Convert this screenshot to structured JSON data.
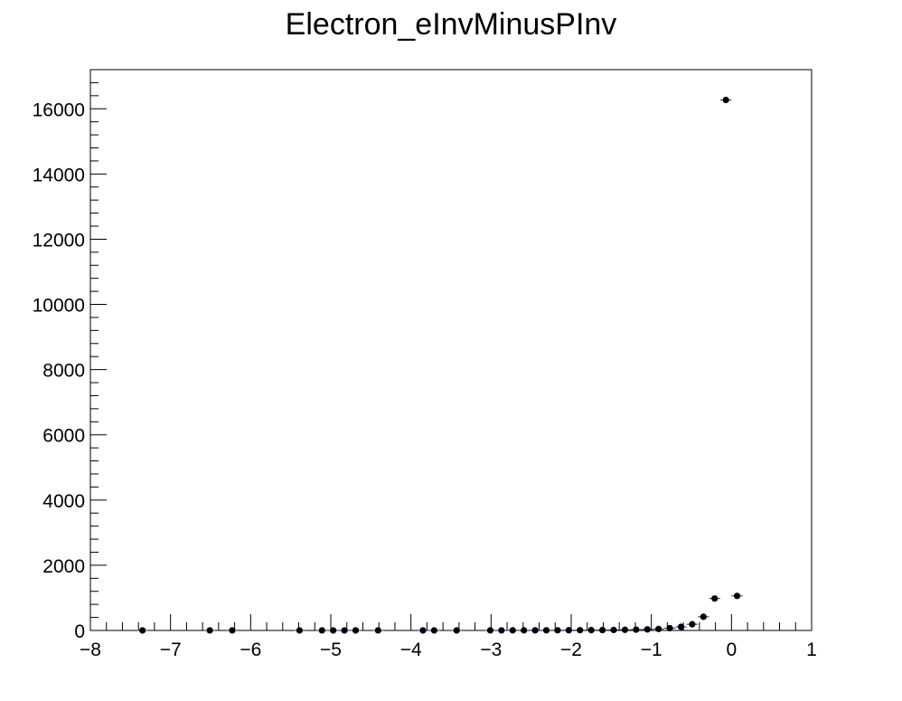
{
  "chart_data": {
    "type": "scatter",
    "title": "Electron_eInvMinusPInv",
    "xlabel": "",
    "ylabel": "",
    "xlim": [
      -8,
      1
    ],
    "ylim": [
      0,
      17200
    ],
    "x_ticks": [
      -8,
      -7,
      -6,
      -5,
      -4,
      -3,
      -2,
      -1,
      0,
      1
    ],
    "x_tick_labels": [
      "−8",
      "−7",
      "−6",
      "−5",
      "−4",
      "−3",
      "−2",
      "−1",
      "0",
      "1"
    ],
    "y_ticks": [
      0,
      2000,
      4000,
      6000,
      8000,
      10000,
      12000,
      14000,
      16000
    ],
    "y_tick_labels": [
      "0",
      "2000",
      "4000",
      "6000",
      "8000",
      "10000",
      "12000",
      "14000",
      "16000"
    ],
    "grid": false,
    "legend": "none",
    "marker_color": "#000000",
    "error_bar_color": "#1f2f8f",
    "bin_width": 0.14,
    "points": [
      {
        "x": -7.35,
        "y": 1
      },
      {
        "x": -6.51,
        "y": 1
      },
      {
        "x": -6.23,
        "y": 1
      },
      {
        "x": -5.39,
        "y": 1
      },
      {
        "x": -5.11,
        "y": 1
      },
      {
        "x": -4.97,
        "y": 1
      },
      {
        "x": -4.83,
        "y": 1
      },
      {
        "x": -4.69,
        "y": 1
      },
      {
        "x": -4.41,
        "y": 1
      },
      {
        "x": -3.85,
        "y": 1
      },
      {
        "x": -3.71,
        "y": 1
      },
      {
        "x": -3.43,
        "y": 1
      },
      {
        "x": -3.01,
        "y": 2
      },
      {
        "x": -2.87,
        "y": 2
      },
      {
        "x": -2.73,
        "y": 3
      },
      {
        "x": -2.59,
        "y": 3
      },
      {
        "x": -2.45,
        "y": 4
      },
      {
        "x": -2.31,
        "y": 4
      },
      {
        "x": -2.17,
        "y": 5
      },
      {
        "x": -2.03,
        "y": 6
      },
      {
        "x": -1.89,
        "y": 8
      },
      {
        "x": -1.75,
        "y": 10
      },
      {
        "x": -1.61,
        "y": 13
      },
      {
        "x": -1.47,
        "y": 16
      },
      {
        "x": -1.33,
        "y": 20
      },
      {
        "x": -1.19,
        "y": 25
      },
      {
        "x": -1.05,
        "y": 32
      },
      {
        "x": -0.91,
        "y": 45
      },
      {
        "x": -0.77,
        "y": 70
      },
      {
        "x": -0.63,
        "y": 110
      },
      {
        "x": -0.49,
        "y": 190
      },
      {
        "x": -0.35,
        "y": 420
      },
      {
        "x": -0.21,
        "y": 980
      },
      {
        "x": -0.07,
        "y": 16270
      },
      {
        "x": 0.07,
        "y": 1060
      }
    ]
  }
}
